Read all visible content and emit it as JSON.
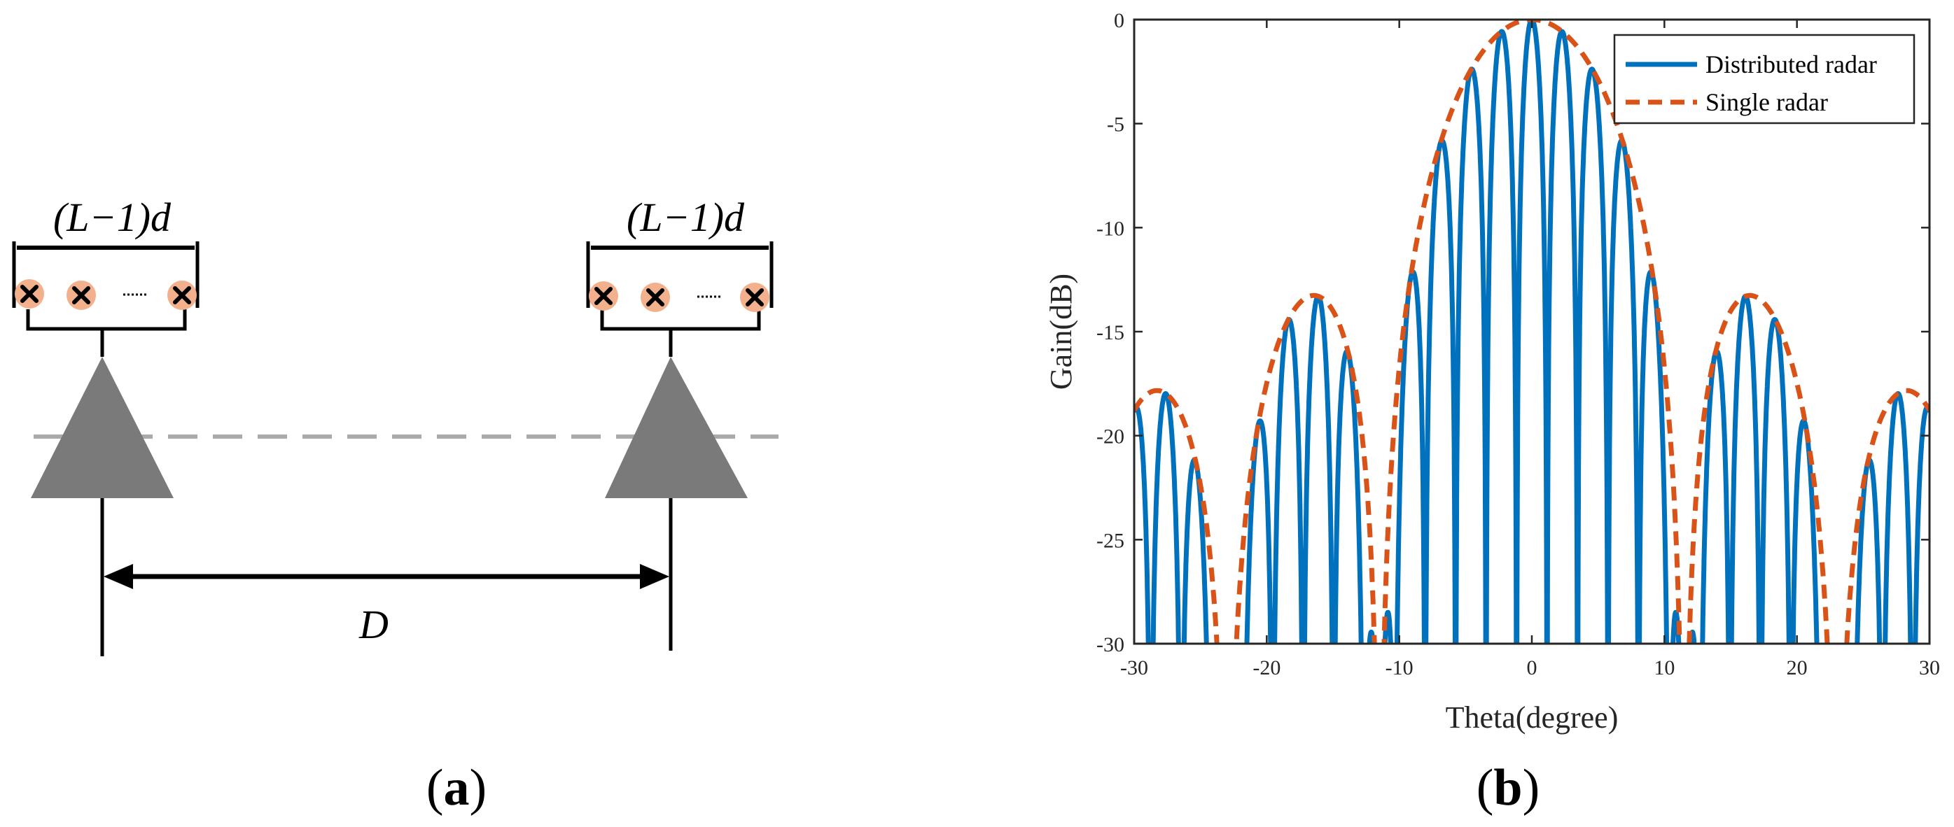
{
  "panel_a": {
    "label_open": "(",
    "label_letter": "a",
    "label_close": ")",
    "aperture_label": "(L−1)d",
    "baseline_label": "D",
    "colors": {
      "triangle": "#7a7a7a",
      "element_fill": "#f2b18c",
      "dash_line": "#aaaaaa"
    }
  },
  "panel_b": {
    "label_open": "(",
    "label_letter": "b",
    "label_close": ")"
  },
  "chart_data": {
    "type": "line",
    "title": "",
    "xlabel": "Theta(degree)",
    "ylabel": "Gain(dB)",
    "xlim": [
      -30,
      30
    ],
    "ylim": [
      -30,
      0
    ],
    "xticks": [
      -30,
      -20,
      -10,
      0,
      10,
      20,
      30
    ],
    "yticks": [
      0,
      -5,
      -10,
      -15,
      -20,
      -25,
      -30
    ],
    "grid": false,
    "legend_position": "top-right",
    "series": [
      {
        "name": "Distributed radar",
        "color": "#0072BD",
        "style": "solid",
        "peaks": [
          {
            "x": -29.0,
            "y": -17.2
          },
          {
            "x": -26.4,
            "y": -20.6
          },
          {
            "x": -21.0,
            "y": -19.0
          },
          {
            "x": -18.8,
            "y": -14.1
          },
          {
            "x": -16.5,
            "y": -13.1
          },
          {
            "x": -14.2,
            "y": -15.8
          },
          {
            "x": -11.5,
            "y": -29.3
          },
          {
            "x": -10.9,
            "y": -28.6
          },
          {
            "x": -9.2,
            "y": -12.1
          },
          {
            "x": -6.9,
            "y": -5.8
          },
          {
            "x": -4.6,
            "y": -2.4
          },
          {
            "x": -2.3,
            "y": -0.6
          },
          {
            "x": 0.0,
            "y": 0.0
          },
          {
            "x": 2.3,
            "y": -0.6
          },
          {
            "x": 4.6,
            "y": -2.4
          },
          {
            "x": 6.9,
            "y": -5.8
          },
          {
            "x": 9.2,
            "y": -12.1
          },
          {
            "x": 10.9,
            "y": -28.6
          },
          {
            "x": 11.5,
            "y": -29.3
          },
          {
            "x": 14.2,
            "y": -15.8
          },
          {
            "x": 16.5,
            "y": -13.1
          },
          {
            "x": 18.8,
            "y": -14.1
          },
          {
            "x": 21.0,
            "y": -19.0
          },
          {
            "x": 26.4,
            "y": -20.6
          },
          {
            "x": 29.0,
            "y": -17.2
          }
        ]
      },
      {
        "name": "Single radar",
        "color": "#D95319",
        "style": "dashed",
        "function": "20*log10(|sinc(x/11.5)|)"
      }
    ]
  }
}
